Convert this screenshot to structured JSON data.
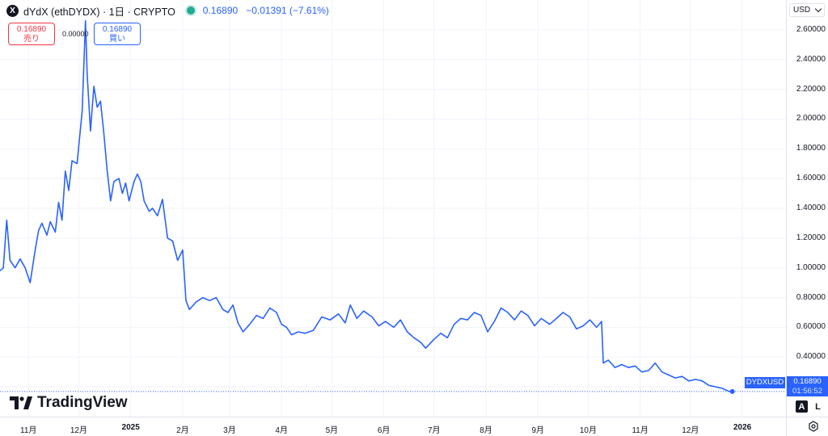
{
  "header": {
    "logo_glyph": "X",
    "title": "dYdX (ethDYDX) · 1日 · CRYPTO",
    "last_price": "0.16890",
    "change": "−0.01391 (−7.61%)"
  },
  "trade": {
    "sell_price": "0.16890",
    "sell_label": "売り",
    "spread": "0.00000",
    "buy_price": "0.16890",
    "buy_label": "買い"
  },
  "currency": {
    "selected": "USD"
  },
  "brand": {
    "name": "TradingView"
  },
  "price_label": {
    "symbol": "DYDXUSD",
    "price": "0.16890",
    "countdown": "01:56:52"
  },
  "scale_buttons": {
    "auto": "A",
    "log": "L"
  },
  "colors": {
    "line": "#2962ff",
    "sell": "#f23645",
    "buy": "#2962ff",
    "live": "#22ab94"
  },
  "chart_data": {
    "type": "line",
    "ylim": [
      0.0,
      2.8
    ],
    "yticks": [
      "2.60000",
      "2.40000",
      "2.20000",
      "2.00000",
      "1.80000",
      "1.60000",
      "1.40000",
      "1.20000",
      "1.00000",
      "0.80000",
      "0.60000",
      "0.40000",
      "0.20000"
    ],
    "xticks": [
      {
        "label": "11月",
        "date": "2024-11-01",
        "bold": false
      },
      {
        "label": "12月",
        "date": "2024-12-01",
        "bold": false
      },
      {
        "label": "2025",
        "date": "2025-01-01",
        "bold": true
      },
      {
        "label": "2月",
        "date": "2025-02-01",
        "bold": false
      },
      {
        "label": "3月",
        "date": "2025-03-01",
        "bold": false
      },
      {
        "label": "4月",
        "date": "2025-04-01",
        "bold": false
      },
      {
        "label": "5月",
        "date": "2025-05-01",
        "bold": false
      },
      {
        "label": "6月",
        "date": "2025-06-01",
        "bold": false
      },
      {
        "label": "7月",
        "date": "2025-07-01",
        "bold": false
      },
      {
        "label": "8月",
        "date": "2025-08-01",
        "bold": false
      },
      {
        "label": "9月",
        "date": "2025-09-01",
        "bold": false
      },
      {
        "label": "10月",
        "date": "2025-10-01",
        "bold": false
      },
      {
        "label": "11月",
        "date": "2025-11-01",
        "bold": false
      },
      {
        "label": "12月",
        "date": "2025-12-01",
        "bold": false
      },
      {
        "label": "2026",
        "date": "2026-01-01",
        "bold": true
      }
    ],
    "xlim": [
      "2024-10-15",
      "2026-01-27"
    ],
    "series": [
      {
        "points": [
          [
            "2024-10-15",
            0.98
          ],
          [
            "2024-10-17",
            1.0
          ],
          [
            "2024-10-19",
            1.32
          ],
          [
            "2024-10-21",
            1.05
          ],
          [
            "2024-10-24",
            1.0
          ],
          [
            "2024-10-27",
            1.06
          ],
          [
            "2024-10-30",
            1.0
          ],
          [
            "2024-11-02",
            0.9
          ],
          [
            "2024-11-05",
            1.12
          ],
          [
            "2024-11-07",
            1.25
          ],
          [
            "2024-11-09",
            1.3
          ],
          [
            "2024-11-12",
            1.22
          ],
          [
            "2024-11-14",
            1.31
          ],
          [
            "2024-11-17",
            1.24
          ],
          [
            "2024-11-19",
            1.44
          ],
          [
            "2024-11-21",
            1.32
          ],
          [
            "2024-11-23",
            1.65
          ],
          [
            "2024-11-25",
            1.52
          ],
          [
            "2024-11-27",
            1.72
          ],
          [
            "2024-11-30",
            1.7
          ],
          [
            "2024-12-03",
            2.05
          ],
          [
            "2024-12-05",
            2.66
          ],
          [
            "2024-12-06",
            2.3
          ],
          [
            "2024-12-08",
            1.92
          ],
          [
            "2024-12-10",
            2.22
          ],
          [
            "2024-12-12",
            2.08
          ],
          [
            "2024-12-14",
            2.12
          ],
          [
            "2024-12-16",
            1.9
          ],
          [
            "2024-12-18",
            1.65
          ],
          [
            "2024-12-20",
            1.45
          ],
          [
            "2024-12-22",
            1.58
          ],
          [
            "2024-12-25",
            1.6
          ],
          [
            "2024-12-27",
            1.5
          ],
          [
            "2024-12-29",
            1.57
          ],
          [
            "2024-12-31",
            1.45
          ],
          [
            "2025-01-03",
            1.58
          ],
          [
            "2025-01-05",
            1.63
          ],
          [
            "2025-01-07",
            1.58
          ],
          [
            "2025-01-09",
            1.45
          ],
          [
            "2025-01-12",
            1.38
          ],
          [
            "2025-01-14",
            1.4
          ],
          [
            "2025-01-17",
            1.35
          ],
          [
            "2025-01-20",
            1.46
          ],
          [
            "2025-01-23",
            1.2
          ],
          [
            "2025-01-26",
            1.18
          ],
          [
            "2025-01-29",
            1.05
          ],
          [
            "2025-02-01",
            1.12
          ],
          [
            "2025-02-03",
            0.78
          ],
          [
            "2025-02-05",
            0.72
          ],
          [
            "2025-02-09",
            0.77
          ],
          [
            "2025-02-13",
            0.8
          ],
          [
            "2025-02-17",
            0.78
          ],
          [
            "2025-02-21",
            0.8
          ],
          [
            "2025-02-25",
            0.72
          ],
          [
            "2025-02-28",
            0.7
          ],
          [
            "2025-03-03",
            0.75
          ],
          [
            "2025-03-06",
            0.63
          ],
          [
            "2025-03-09",
            0.57
          ],
          [
            "2025-03-13",
            0.62
          ],
          [
            "2025-03-17",
            0.68
          ],
          [
            "2025-03-21",
            0.66
          ],
          [
            "2025-03-25",
            0.73
          ],
          [
            "2025-03-29",
            0.7
          ],
          [
            "2025-04-01",
            0.62
          ],
          [
            "2025-04-04",
            0.6
          ],
          [
            "2025-04-07",
            0.55
          ],
          [
            "2025-04-11",
            0.57
          ],
          [
            "2025-04-15",
            0.56
          ],
          [
            "2025-04-20",
            0.58
          ],
          [
            "2025-04-25",
            0.67
          ],
          [
            "2025-04-30",
            0.65
          ],
          [
            "2025-05-05",
            0.69
          ],
          [
            "2025-05-09",
            0.63
          ],
          [
            "2025-05-12",
            0.75
          ],
          [
            "2025-05-16",
            0.66
          ],
          [
            "2025-05-20",
            0.71
          ],
          [
            "2025-05-25",
            0.67
          ],
          [
            "2025-05-29",
            0.61
          ],
          [
            "2025-06-02",
            0.64
          ],
          [
            "2025-06-07",
            0.6
          ],
          [
            "2025-06-11",
            0.65
          ],
          [
            "2025-06-15",
            0.57
          ],
          [
            "2025-06-19",
            0.53
          ],
          [
            "2025-06-23",
            0.5
          ],
          [
            "2025-06-26",
            0.46
          ],
          [
            "2025-07-01",
            0.52
          ],
          [
            "2025-07-05",
            0.56
          ],
          [
            "2025-07-09",
            0.53
          ],
          [
            "2025-07-13",
            0.62
          ],
          [
            "2025-07-17",
            0.66
          ],
          [
            "2025-07-21",
            0.65
          ],
          [
            "2025-07-25",
            0.7
          ],
          [
            "2025-07-29",
            0.68
          ],
          [
            "2025-08-02",
            0.57
          ],
          [
            "2025-08-06",
            0.64
          ],
          [
            "2025-08-10",
            0.73
          ],
          [
            "2025-08-14",
            0.7
          ],
          [
            "2025-08-18",
            0.65
          ],
          [
            "2025-08-22",
            0.71
          ],
          [
            "2025-08-26",
            0.68
          ],
          [
            "2025-08-30",
            0.61
          ],
          [
            "2025-09-03",
            0.66
          ],
          [
            "2025-09-08",
            0.62
          ],
          [
            "2025-09-12",
            0.66
          ],
          [
            "2025-09-16",
            0.7
          ],
          [
            "2025-09-20",
            0.67
          ],
          [
            "2025-09-24",
            0.59
          ],
          [
            "2025-09-28",
            0.61
          ],
          [
            "2025-10-02",
            0.65
          ],
          [
            "2025-10-06",
            0.6
          ],
          [
            "2025-10-09",
            0.64
          ],
          [
            "2025-10-10",
            0.36
          ],
          [
            "2025-10-13",
            0.38
          ],
          [
            "2025-10-17",
            0.33
          ],
          [
            "2025-10-21",
            0.35
          ],
          [
            "2025-10-25",
            0.33
          ],
          [
            "2025-10-29",
            0.34
          ],
          [
            "2025-11-02",
            0.3
          ],
          [
            "2025-11-06",
            0.31
          ],
          [
            "2025-11-10",
            0.36
          ],
          [
            "2025-11-14",
            0.3
          ],
          [
            "2025-11-18",
            0.28
          ],
          [
            "2025-11-22",
            0.26
          ],
          [
            "2025-11-26",
            0.27
          ],
          [
            "2025-11-30",
            0.24
          ],
          [
            "2025-12-04",
            0.25
          ],
          [
            "2025-12-08",
            0.24
          ],
          [
            "2025-12-12",
            0.21
          ],
          [
            "2025-12-16",
            0.2
          ],
          [
            "2025-12-20",
            0.19
          ],
          [
            "2025-12-24",
            0.17
          ],
          [
            "2025-12-26",
            0.1689
          ]
        ]
      }
    ],
    "last_value": 0.1689,
    "grid": true
  }
}
